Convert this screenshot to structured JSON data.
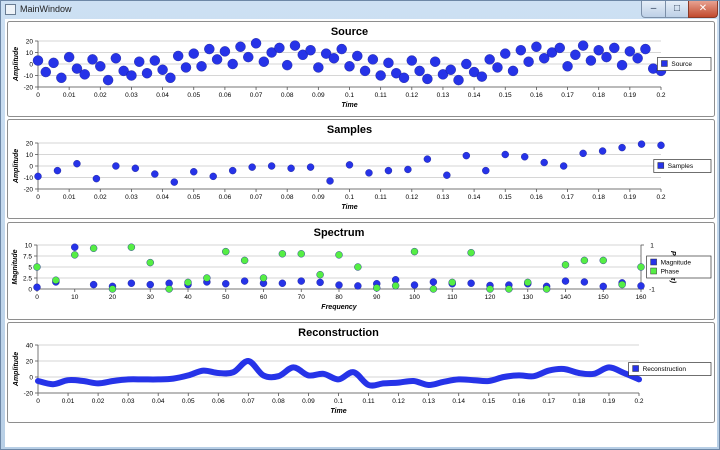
{
  "window": {
    "title": "MainWindow",
    "min_glyph": "–",
    "max_glyph": "□",
    "close_glyph": "✕"
  },
  "colors": {
    "blue": "#2633e8",
    "green": "#55ee44"
  },
  "chart_data": [
    {
      "id": "source",
      "type": "scatter",
      "title": "Source",
      "xlabel": "Time",
      "ylabel": "Amplitude",
      "xlim": [
        0,
        0.2
      ],
      "ylim": [
        -20,
        20
      ],
      "xticks": [
        0,
        0.01,
        0.02,
        0.03,
        0.04,
        0.05,
        0.06,
        0.07,
        0.08,
        0.09,
        0.1,
        0.11,
        0.12,
        0.13,
        0.14,
        0.15,
        0.16,
        0.17,
        0.18,
        0.19,
        0.2
      ],
      "yticks": [
        -20,
        -10,
        0,
        10,
        20
      ],
      "grid": true,
      "legend_position": "right",
      "series": [
        {
          "name": "Source",
          "color": "#2633e8",
          "x": [
            0.0,
            0.0025,
            0.005,
            0.0075,
            0.01,
            0.0125,
            0.015,
            0.0175,
            0.02,
            0.0225,
            0.025,
            0.0275,
            0.03,
            0.0325,
            0.035,
            0.0375,
            0.04,
            0.0425,
            0.045,
            0.0475,
            0.05,
            0.0525,
            0.055,
            0.0575,
            0.06,
            0.0625,
            0.065,
            0.0675,
            0.07,
            0.0725,
            0.075,
            0.0775,
            0.08,
            0.0825,
            0.085,
            0.0875,
            0.09,
            0.0925,
            0.095,
            0.0975,
            0.1,
            0.1025,
            0.105,
            0.1075,
            0.11,
            0.1125,
            0.115,
            0.1175,
            0.12,
            0.1225,
            0.125,
            0.1275,
            0.13,
            0.1325,
            0.135,
            0.1375,
            0.14,
            0.1425,
            0.145,
            0.1475,
            0.15,
            0.1525,
            0.155,
            0.1575,
            0.16,
            0.1625,
            0.165,
            0.1675,
            0.17,
            0.1725,
            0.175,
            0.1775,
            0.18,
            0.1825,
            0.185,
            0.1875,
            0.19,
            0.1925,
            0.195,
            0.1975,
            0.2
          ],
          "y": [
            3,
            -7,
            1,
            -12,
            6,
            -4,
            -9,
            4,
            -2,
            -14,
            5,
            -6,
            -10,
            2,
            -8,
            3,
            -5,
            -12,
            7,
            -3,
            9,
            -2,
            13,
            4,
            11,
            0,
            15,
            6,
            18,
            2,
            10,
            14,
            -1,
            16,
            8,
            12,
            -3,
            9,
            5,
            13,
            -2,
            7,
            -6,
            4,
            -10,
            1,
            -8,
            -12,
            3,
            -6,
            -13,
            2,
            -9,
            -5,
            -14,
            0,
            -7,
            -11,
            4,
            -3,
            9,
            -6,
            12,
            2,
            15,
            5,
            10,
            14,
            -2,
            8,
            16,
            3,
            12,
            6,
            14,
            -1,
            11,
            5,
            13,
            -4,
            -6
          ]
        }
      ]
    },
    {
      "id": "samples",
      "type": "scatter",
      "title": "Samples",
      "xlabel": "Time",
      "ylabel": "Amplitude",
      "xlim": [
        0,
        0.2
      ],
      "ylim": [
        -20,
        20
      ],
      "xticks": [
        0,
        0.01,
        0.02,
        0.03,
        0.04,
        0.05,
        0.06,
        0.07,
        0.08,
        0.09,
        0.1,
        0.11,
        0.12,
        0.13,
        0.14,
        0.15,
        0.16,
        0.17,
        0.18,
        0.19,
        0.2
      ],
      "yticks": [
        -20,
        -10,
        0,
        10,
        20
      ],
      "grid": true,
      "legend_position": "right",
      "series": [
        {
          "name": "Samples",
          "color": "#2633e8",
          "x": [
            0.0,
            0.00625,
            0.0125,
            0.01875,
            0.025,
            0.03125,
            0.0375,
            0.04375,
            0.05,
            0.05625,
            0.0625,
            0.06875,
            0.075,
            0.08125,
            0.0875,
            0.09375,
            0.1,
            0.10625,
            0.1125,
            0.11875,
            0.125,
            0.13125,
            0.1375,
            0.14375,
            0.15,
            0.15625,
            0.1625,
            0.16875,
            0.175,
            0.18125,
            0.1875,
            0.19375,
            0.2
          ],
          "y": [
            -9,
            -4,
            2,
            -11,
            0,
            -2,
            -7,
            -14,
            -5,
            -9,
            -4,
            -1,
            0,
            -2,
            -1,
            -13,
            1,
            -6,
            -4,
            -3,
            6,
            -8,
            9,
            -4,
            10,
            8,
            3,
            0,
            11,
            13,
            16,
            19,
            18
          ]
        }
      ]
    },
    {
      "id": "spectrum",
      "type": "scatter",
      "title": "Spectrum",
      "xlabel": "Frequency",
      "ylabel": "Magnitude",
      "y2label": "Phase (π)",
      "xlim": [
        0,
        160
      ],
      "ylim": [
        0,
        10
      ],
      "y2lim": [
        -1,
        1
      ],
      "xticks": [
        0,
        10,
        20,
        30,
        40,
        50,
        60,
        70,
        80,
        90,
        100,
        110,
        120,
        130,
        140,
        150,
        160
      ],
      "yticks": [
        0,
        2.5,
        5,
        7.5,
        10
      ],
      "y2ticks": [
        -1,
        0,
        1
      ],
      "grid": true,
      "legend_position": "right",
      "series": [
        {
          "name": "Magnitude",
          "axis": "left",
          "color": "#2633e8",
          "x": [
            0,
            5,
            10,
            15,
            20,
            25,
            30,
            35,
            40,
            45,
            50,
            55,
            60,
            65,
            70,
            75,
            80,
            85,
            90,
            95,
            100,
            105,
            110,
            115,
            120,
            125,
            130,
            135,
            140,
            145,
            150,
            155,
            160
          ],
          "y": [
            0.4,
            1.6,
            9.5,
            1.0,
            0.6,
            1.3,
            1.0,
            1.3,
            1.0,
            1.6,
            1.2,
            1.8,
            1.3,
            1.3,
            1.8,
            1.5,
            0.9,
            0.7,
            1.2,
            2.1,
            0.9,
            1.6,
            1.2,
            1.3,
            0.8,
            0.9,
            1.2,
            0.6,
            1.8,
            1.6,
            0.6,
            1.4,
            0.7
          ]
        },
        {
          "name": "Phase",
          "axis": "right",
          "color": "#55ee44",
          "x": [
            0,
            5,
            10,
            15,
            20,
            25,
            30,
            35,
            40,
            45,
            50,
            55,
            60,
            65,
            70,
            75,
            80,
            85,
            90,
            95,
            100,
            105,
            110,
            115,
            120,
            125,
            130,
            135,
            140,
            145,
            150,
            155,
            160
          ],
          "y": [
            0.0,
            -0.6,
            0.55,
            0.85,
            -1.0,
            0.9,
            0.2,
            -1.0,
            -0.7,
            -0.5,
            0.7,
            0.3,
            -0.5,
            0.6,
            0.6,
            -0.35,
            0.55,
            0.0,
            -0.95,
            -0.85,
            0.7,
            -1.0,
            -0.7,
            0.65,
            -1.0,
            -1.0,
            -0.7,
            -1.0,
            0.1,
            0.3,
            0.3,
            -0.8,
            0.0
          ]
        }
      ]
    },
    {
      "id": "reconstruction",
      "type": "line",
      "title": "Reconstruction",
      "xlabel": "Time",
      "ylabel": "Amplitude",
      "xlim": [
        0,
        0.2
      ],
      "ylim": [
        -20,
        40
      ],
      "xticks": [
        0,
        0.01,
        0.02,
        0.03,
        0.04,
        0.05,
        0.06,
        0.07,
        0.08,
        0.09,
        0.1,
        0.11,
        0.12,
        0.13,
        0.14,
        0.15,
        0.16,
        0.17,
        0.18,
        0.19,
        0.2
      ],
      "yticks": [
        -20,
        0,
        20,
        40
      ],
      "grid": true,
      "legend_position": "right",
      "series": [
        {
          "name": "Reconstruction",
          "color": "#2633e8",
          "x": [
            0,
            0.005,
            0.01,
            0.015,
            0.02,
            0.025,
            0.03,
            0.035,
            0.04,
            0.045,
            0.05,
            0.055,
            0.06,
            0.065,
            0.07,
            0.075,
            0.08,
            0.085,
            0.09,
            0.095,
            0.1,
            0.105,
            0.11,
            0.115,
            0.12,
            0.125,
            0.13,
            0.135,
            0.14,
            0.145,
            0.15,
            0.155,
            0.16,
            0.165,
            0.17,
            0.175,
            0.18,
            0.185,
            0.19,
            0.195,
            0.2
          ],
          "y": [
            -5,
            -9,
            -4,
            -5,
            -8,
            -5,
            -3,
            -3,
            -3,
            -2,
            2,
            8,
            5,
            6,
            20,
            2,
            1,
            12,
            2,
            4,
            -3,
            6,
            -10,
            -8,
            -7,
            -5,
            -10,
            -6,
            -3,
            -4,
            -5,
            0,
            2,
            1,
            8,
            10,
            5,
            4,
            12,
            5,
            -3
          ]
        }
      ]
    }
  ]
}
